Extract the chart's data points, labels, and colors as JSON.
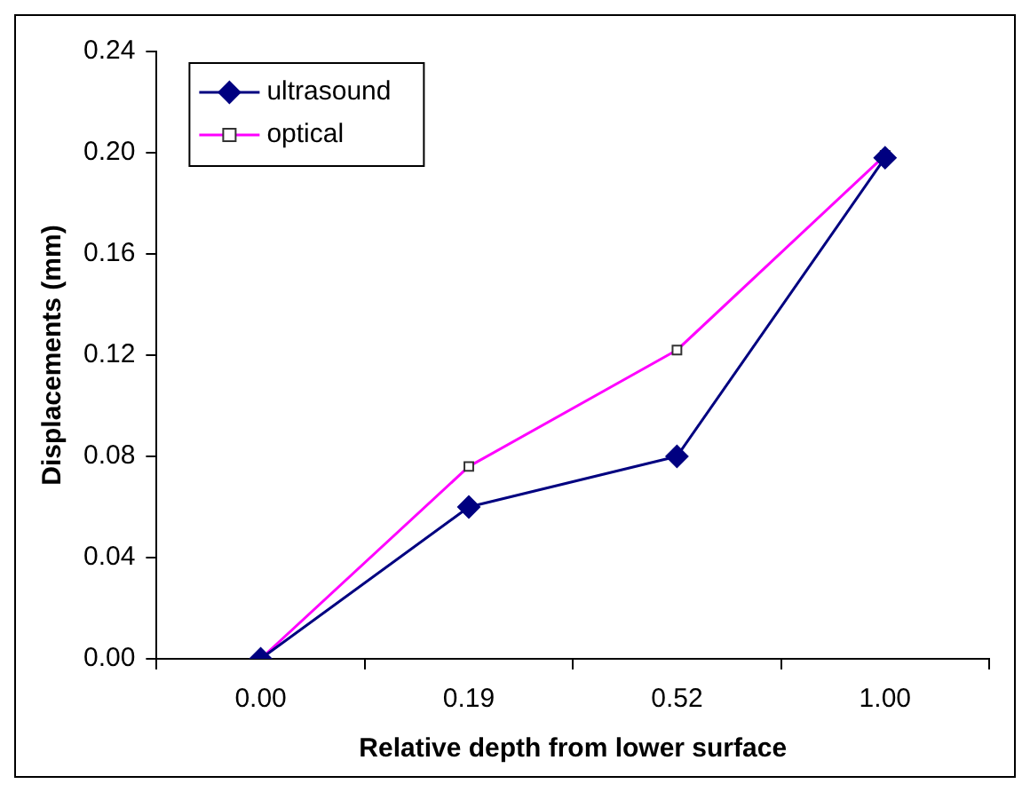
{
  "chart_data": {
    "type": "line",
    "xlabel": "Relative depth from lower surface",
    "ylabel": "Displacements (mm)",
    "categories": [
      "0.00",
      "0.19",
      "0.52",
      "1.00"
    ],
    "series": [
      {
        "name": "ultrasound",
        "color": "#000080",
        "marker": "diamond",
        "values": [
          0,
          0.06,
          0.08,
          0.198
        ]
      },
      {
        "name": "optical",
        "color": "#ff00ff",
        "marker": "square",
        "values": [
          0,
          0.076,
          0.122,
          0.199
        ]
      }
    ],
    "ylim": [
      0,
      0.24
    ],
    "yticks": [
      {
        "value": 0,
        "label": "0.00"
      },
      {
        "value": 0.04,
        "label": "0.04"
      },
      {
        "value": 0.08,
        "label": "0.08"
      },
      {
        "value": 0.12,
        "label": "0.12"
      },
      {
        "value": 0.16,
        "label": "0.16"
      },
      {
        "value": 0.2,
        "label": "0.20"
      },
      {
        "value": 0.24,
        "label": "0.24"
      }
    ],
    "grid": false,
    "legend": "top left",
    "line_style": "solid"
  }
}
